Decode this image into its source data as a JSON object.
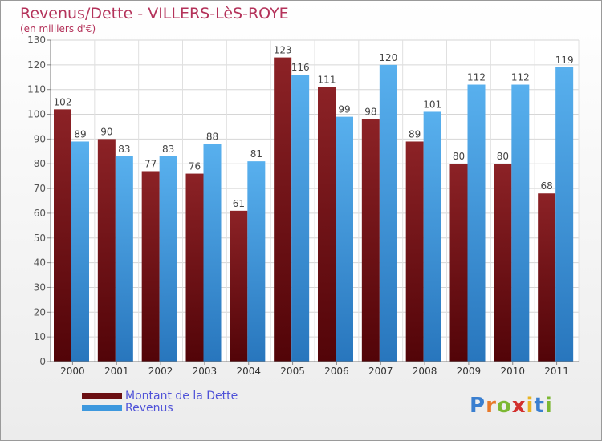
{
  "title": "Revenus/Dette - VILLERS-LèS-ROYE",
  "subtitle": "(en milliers d'€)",
  "logo_text": "Proxiti",
  "colors": {
    "dette": "#7a1418",
    "revenus": "#3d98de",
    "title": "#b4325a",
    "legend_text": "#4f52d8"
  },
  "chart_data": {
    "type": "bar",
    "title": "Revenus/Dette - VILLERS-LèS-ROYE",
    "ylabel": "(en milliers d'€)",
    "categories": [
      "2000",
      "2001",
      "2002",
      "2003",
      "2004",
      "2005",
      "2006",
      "2007",
      "2008",
      "2009",
      "2010",
      "2011"
    ],
    "ylim": [
      0,
      130
    ],
    "yticks": [
      0,
      10,
      20,
      30,
      40,
      50,
      60,
      70,
      80,
      90,
      100,
      110,
      120,
      130
    ],
    "grid": true,
    "legend_position": "bottom-left",
    "series": [
      {
        "name": "Montant de la Dette",
        "color": "#7a1418",
        "values": [
          102,
          90,
          77,
          76,
          61,
          123,
          111,
          98,
          89,
          80,
          80,
          68
        ]
      },
      {
        "name": "Revenus",
        "color": "#3d98de",
        "values": [
          89,
          83,
          83,
          88,
          81,
          116,
          99,
          120,
          101,
          112,
          112,
          119
        ]
      }
    ]
  }
}
